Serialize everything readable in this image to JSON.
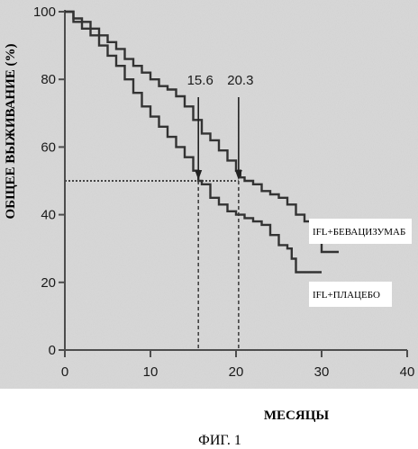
{
  "chart_data": {
    "type": "line",
    "title": "",
    "xlabel": "МЕСЯЦЫ",
    "ylabel": "ОБЩЕЕ ВЫЖИВАНИЕ (%)",
    "caption": "ФИГ. 1",
    "xlim": [
      0,
      40
    ],
    "ylim": [
      0,
      100
    ],
    "x_ticks": [
      0,
      10,
      20,
      30,
      40
    ],
    "y_ticks": [
      0,
      20,
      40,
      60,
      80,
      100
    ],
    "grid": false,
    "colors": {
      "background": "#d9d9d9",
      "line": "#333333",
      "axis": "#4d4d4d"
    },
    "series": [
      {
        "name": "IFL+БЕВАЦИЗУМАБ",
        "points": [
          [
            0,
            100
          ],
          [
            1,
            98
          ],
          [
            2,
            97
          ],
          [
            3,
            95
          ],
          [
            4,
            93
          ],
          [
            5,
            91
          ],
          [
            6,
            89
          ],
          [
            7,
            86
          ],
          [
            8,
            84
          ],
          [
            9,
            82
          ],
          [
            10,
            80
          ],
          [
            11,
            78
          ],
          [
            12,
            77
          ],
          [
            13,
            75
          ],
          [
            14,
            72
          ],
          [
            15,
            68
          ],
          [
            16,
            64
          ],
          [
            17,
            62
          ],
          [
            18,
            59
          ],
          [
            19,
            56
          ],
          [
            20,
            53
          ],
          [
            20.5,
            51
          ],
          [
            21,
            50
          ],
          [
            22,
            49
          ],
          [
            23,
            47
          ],
          [
            24,
            46
          ],
          [
            25,
            45
          ],
          [
            26,
            43
          ],
          [
            27,
            40
          ],
          [
            28,
            38
          ],
          [
            29,
            36
          ],
          [
            29.5,
            36
          ],
          [
            30,
            29
          ],
          [
            32,
            29
          ]
        ]
      },
      {
        "name": "IFL+ПЛАЦЕБО",
        "points": [
          [
            0,
            100
          ],
          [
            1,
            97
          ],
          [
            2,
            95
          ],
          [
            3,
            93
          ],
          [
            4,
            90
          ],
          [
            5,
            87
          ],
          [
            6,
            84
          ],
          [
            7,
            80
          ],
          [
            8,
            76
          ],
          [
            9,
            72
          ],
          [
            10,
            69
          ],
          [
            11,
            66
          ],
          [
            12,
            63
          ],
          [
            13,
            60
          ],
          [
            14,
            57
          ],
          [
            15,
            53
          ],
          [
            15.6,
            50
          ],
          [
            16,
            49
          ],
          [
            17,
            45
          ],
          [
            18,
            43
          ],
          [
            19,
            41
          ],
          [
            20,
            40
          ],
          [
            21,
            39
          ],
          [
            22,
            38
          ],
          [
            23,
            37
          ],
          [
            24,
            34
          ],
          [
            25,
            31
          ],
          [
            26,
            30
          ],
          [
            26.5,
            27
          ],
          [
            27,
            23
          ],
          [
            30,
            23
          ]
        ]
      }
    ],
    "median_line": {
      "y": 50
    },
    "annotations": [
      {
        "text": "15.6",
        "x": 15.6
      },
      {
        "text": "20.3",
        "x": 20.3
      }
    ]
  }
}
